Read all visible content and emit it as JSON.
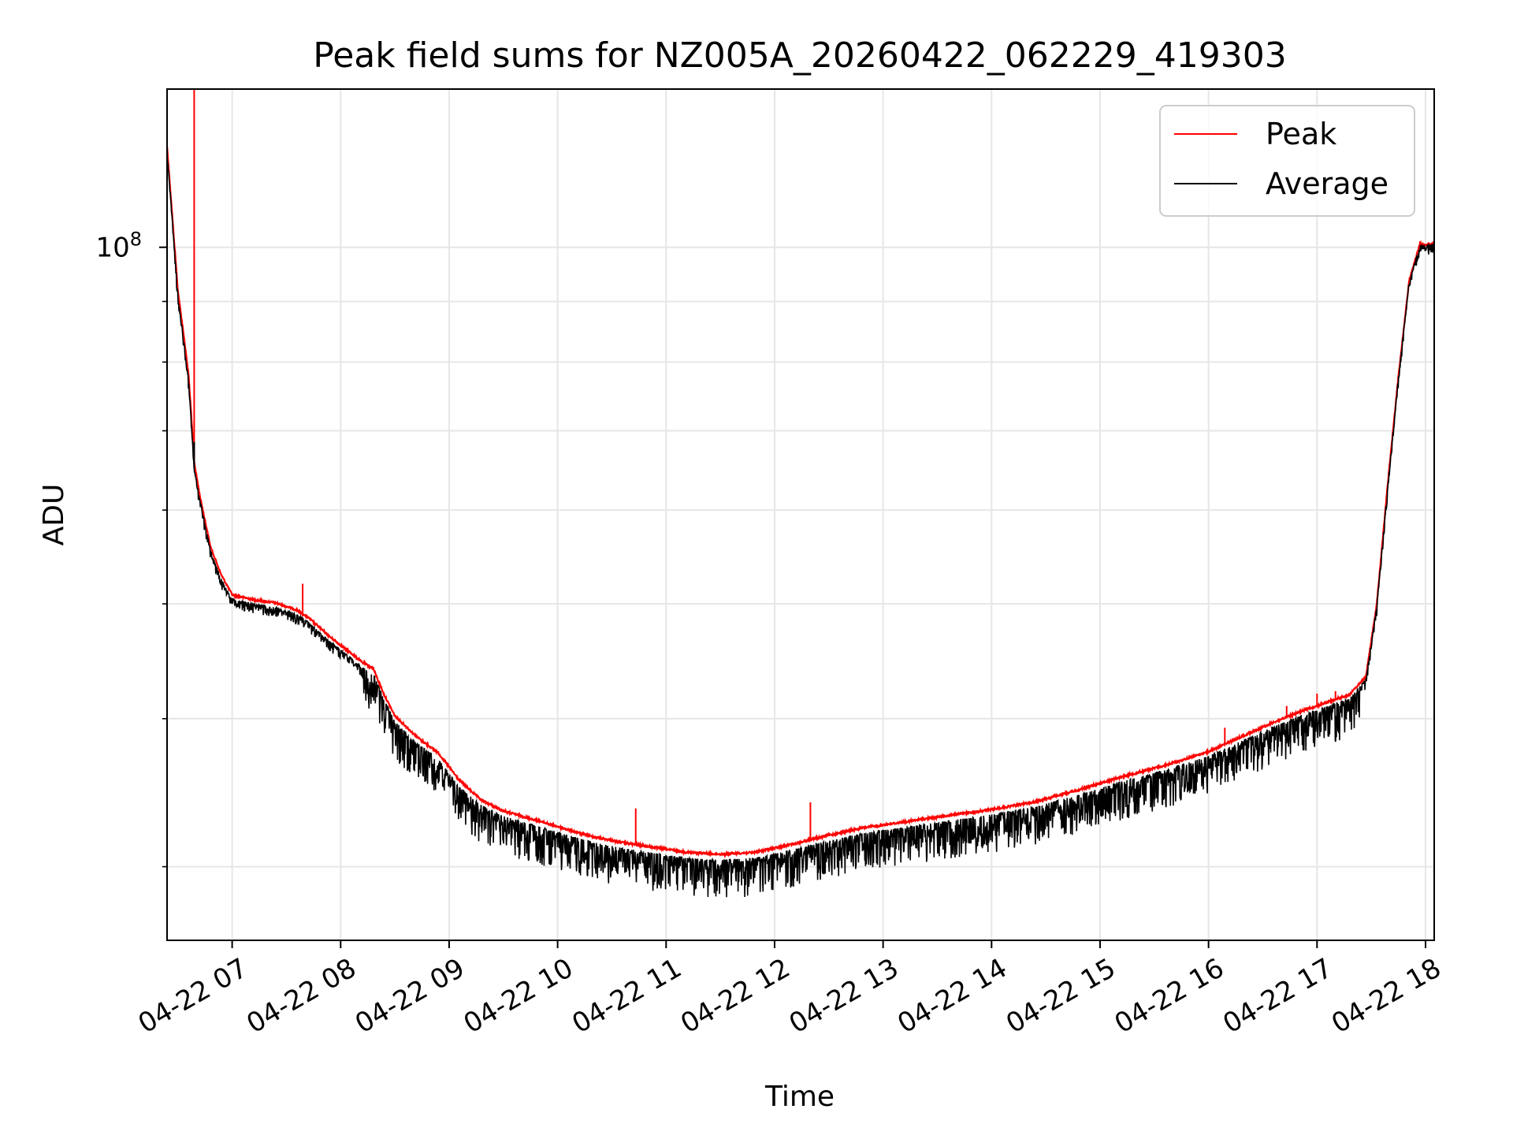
{
  "chart_data": {
    "type": "line",
    "title": "Peak field sums for NZ005A_20260422_062229_419303",
    "xlabel": "Time",
    "ylabel": "ADU",
    "yscale": "log",
    "xlim": [
      6.4,
      18.08
    ],
    "ylim": [
      26000000,
      136000000
    ],
    "grid": true,
    "legend_position": "upper right",
    "x_ticks": [
      {
        "value": 7,
        "label": "04-22 07"
      },
      {
        "value": 8,
        "label": "04-22 08"
      },
      {
        "value": 9,
        "label": "04-22 09"
      },
      {
        "value": 10,
        "label": "04-22 10"
      },
      {
        "value": 11,
        "label": "04-22 11"
      },
      {
        "value": 12,
        "label": "04-22 12"
      },
      {
        "value": 13,
        "label": "04-22 13"
      },
      {
        "value": 14,
        "label": "04-22 14"
      },
      {
        "value": 15,
        "label": "04-22 15"
      },
      {
        "value": 16,
        "label": "04-22 16"
      },
      {
        "value": 17,
        "label": "04-22 17"
      },
      {
        "value": 18,
        "label": "04-22 18"
      }
    ],
    "y_major_ticks": [
      {
        "value": 100000000,
        "base": "10",
        "exponent": "8"
      }
    ],
    "y_minor_ticks": [
      30000000,
      40000000,
      50000000,
      60000000,
      70000000,
      80000000,
      90000000
    ],
    "series": [
      {
        "name": "Peak",
        "color": "#ff0000",
        "x": [
          6.4,
          6.45,
          6.5,
          6.55,
          6.6,
          6.65,
          6.7,
          6.8,
          6.9,
          7.0,
          7.2,
          7.4,
          7.6,
          7.7,
          7.9,
          8.1,
          8.2,
          8.3,
          8.4,
          8.5,
          8.7,
          8.9,
          9.1,
          9.3,
          9.5,
          9.8,
          10.0,
          10.3,
          10.6,
          10.9,
          11.2,
          11.5,
          11.8,
          12.1,
          12.4,
          12.8,
          13.2,
          13.6,
          14.0,
          14.4,
          14.8,
          15.2,
          15.6,
          16.0,
          16.3,
          16.6,
          16.9,
          17.1,
          17.3,
          17.45,
          17.55,
          17.65,
          17.75,
          17.85,
          17.95,
          18.0,
          18.08
        ],
        "values": [
          122000000,
          106000000,
          92000000,
          85000000,
          78000000,
          66000000,
          62000000,
          56000000,
          53000000,
          51000000,
          50500000,
          50200000,
          49500000,
          48800000,
          47000000,
          45500000,
          44700000,
          44200000,
          42000000,
          40300000,
          38700000,
          37500000,
          35500000,
          34200000,
          33500000,
          32900000,
          32500000,
          31900000,
          31500000,
          31200000,
          30900000,
          30800000,
          30900000,
          31300000,
          31800000,
          32400000,
          32800000,
          33200000,
          33600000,
          34100000,
          34900000,
          35800000,
          36600000,
          37600000,
          38700000,
          39800000,
          40800000,
          41400000,
          42000000,
          43500000,
          50000000,
          63000000,
          78000000,
          94000000,
          101000000,
          100500000,
          101000000
        ],
        "spikes": [
          {
            "x": 6.65,
            "value": 136000000
          },
          {
            "x": 7.65,
            "value": 52000000
          },
          {
            "x": 10.72,
            "value": 33600000
          },
          {
            "x": 12.33,
            "value": 34000000
          },
          {
            "x": 16.15,
            "value": 39300000
          },
          {
            "x": 16.72,
            "value": 41000000
          },
          {
            "x": 17.0,
            "value": 42000000
          },
          {
            "x": 17.17,
            "value": 42200000
          }
        ]
      },
      {
        "name": "Average",
        "color": "#000000",
        "x": [
          6.4,
          6.45,
          6.5,
          6.55,
          6.6,
          6.65,
          6.7,
          6.8,
          6.9,
          7.0,
          7.2,
          7.4,
          7.6,
          7.7,
          7.9,
          8.1,
          8.2,
          8.3,
          8.4,
          8.5,
          8.7,
          8.9,
          9.1,
          9.3,
          9.5,
          9.8,
          10.0,
          10.3,
          10.6,
          10.9,
          11.2,
          11.5,
          11.8,
          12.1,
          12.4,
          12.8,
          13.2,
          13.6,
          14.0,
          14.4,
          14.8,
          15.2,
          15.6,
          16.0,
          16.3,
          16.6,
          16.9,
          17.1,
          17.3,
          17.45,
          17.55,
          17.65,
          17.75,
          17.85,
          17.95,
          18.0,
          18.08
        ],
        "values": [
          121000000,
          105000000,
          91000000,
          84000000,
          77000000,
          65000000,
          61500000,
          55500000,
          52500000,
          50500000,
          50000000,
          49700000,
          49000000,
          48300000,
          46500000,
          45000000,
          44200000,
          43700000,
          41500000,
          39800000,
          38200000,
          37000000,
          35000000,
          33800000,
          33100000,
          32500000,
          32100000,
          31500000,
          31100000,
          30800000,
          30500000,
          30400000,
          30500000,
          30900000,
          31400000,
          32000000,
          32400000,
          32800000,
          33200000,
          33700000,
          34500000,
          35400000,
          36200000,
          37200000,
          38300000,
          39400000,
          40400000,
          41000000,
          41600000,
          43200000,
          49700000,
          62700000,
          77700000,
          93700000,
          100700000,
          100200000,
          100700000
        ],
        "dips": [
          {
            "x": 6.65,
            "value": 68500000
          }
        ]
      }
    ]
  }
}
